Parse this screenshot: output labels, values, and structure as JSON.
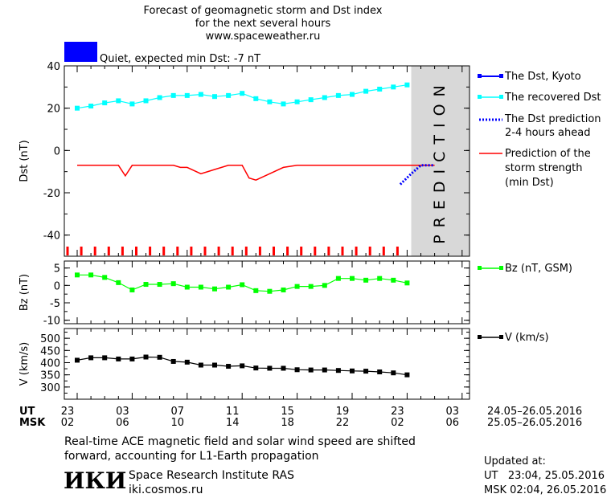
{
  "header": {
    "title_lines": [
      "Forecast of geomagnetic storm and Dst index",
      "for the next several hours",
      "www.spaceweather.ru"
    ],
    "status_color": "#0000ff",
    "status_text": "Quiet, expected min Dst: -7 nT",
    "prediction_label": "PREDICTION"
  },
  "legend": {
    "dst_kyoto": "The Dst, Kyoto",
    "dst_recovered": "The recovered Dst",
    "dst_prediction": [
      "The Dst prediction",
      "2-4 hours ahead"
    ],
    "storm_strength": [
      "Prediction of the",
      "storm strength",
      "(min Dst)"
    ],
    "bz": "Bz (nT, GSM)",
    "v": "V (km/s)"
  },
  "colors": {
    "kyoto": "#0000ff",
    "recovered": "#00ffff",
    "prediction": "#0000ff",
    "storm": "#ff0000",
    "bz": "#00ff00",
    "v": "#000000",
    "prediction_band": "#d8d8d8"
  },
  "chart_data": [
    {
      "type": "line",
      "ylabel": "Dst (nT)",
      "ylim": [
        -50,
        40
      ],
      "yticks": [
        40,
        20,
        0,
        -20,
        -40
      ],
      "x_hours_from_start": [
        0,
        1,
        2,
        3,
        4,
        5,
        6,
        7,
        8,
        9,
        10,
        11,
        12,
        13,
        14,
        15,
        16,
        17,
        18,
        19,
        20,
        21,
        22,
        23,
        24
      ],
      "series": [
        {
          "name": "The recovered Dst",
          "values": [
            20,
            21,
            22.5,
            23.5,
            22,
            23.5,
            25,
            26,
            26,
            26.5,
            25.5,
            26,
            27,
            24.5,
            23,
            22,
            23,
            24,
            25,
            26,
            26.5,
            28,
            29,
            30,
            31
          ]
        },
        {
          "name": "Prediction of the storm strength (min Dst)",
          "x": [
            0,
            1,
            2,
            3,
            3.5,
            4,
            5,
            6,
            7,
            7.5,
            8,
            9,
            10,
            11,
            12,
            12.5,
            13,
            14,
            15,
            16,
            17,
            18,
            19,
            20,
            21,
            22,
            23,
            24,
            25,
            26
          ],
          "values": [
            -7,
            -7,
            -7,
            -7,
            -12,
            -7,
            -7,
            -7,
            -7,
            -8,
            -8,
            -11,
            -9,
            -7,
            -7,
            -13,
            -14,
            -11,
            -8,
            -7,
            -7,
            -7,
            -7,
            -7,
            -7,
            -7,
            -7,
            -7,
            -7,
            -7
          ]
        },
        {
          "name": "The Dst prediction 2-4 hours ahead",
          "x": [
            23.5,
            24.3,
            25,
            26
          ],
          "values": [
            -16,
            -11,
            -7,
            -7
          ]
        }
      ],
      "storm_markers_hours": [
        0,
        1,
        2,
        3,
        4,
        5,
        6,
        7,
        8,
        9,
        10,
        11,
        12,
        13,
        14,
        15,
        16,
        17,
        18,
        19,
        20,
        21,
        22,
        23,
        24
      ]
    },
    {
      "type": "line",
      "ylabel": "Bz (nT)",
      "ylim": [
        -11,
        7
      ],
      "yticks": [
        5,
        0,
        -5,
        -10
      ],
      "x_hours_from_start": [
        0,
        1,
        2,
        3,
        4,
        5,
        6,
        7,
        8,
        9,
        10,
        11,
        12,
        13,
        14,
        15,
        16,
        17,
        18,
        19,
        20,
        21,
        22,
        23,
        24
      ],
      "series": [
        {
          "name": "Bz (nT, GSM)",
          "values": [
            3,
            3,
            2.3,
            0.8,
            -1.3,
            0.3,
            0.3,
            0.5,
            -0.5,
            -0.5,
            -1,
            -0.5,
            0.2,
            -1.5,
            -1.7,
            -1.3,
            -0.3,
            -0.3,
            0,
            2,
            2,
            1.5,
            2,
            1.5,
            0.7
          ]
        }
      ]
    },
    {
      "type": "line",
      "ylabel": "V (km/s)",
      "ylim": [
        250,
        540
      ],
      "yticks": [
        500,
        450,
        400,
        350,
        300
      ],
      "x_hours_from_start": [
        0,
        1,
        2,
        3,
        4,
        5,
        6,
        7,
        8,
        9,
        10,
        11,
        12,
        13,
        14,
        15,
        16,
        17,
        18,
        19,
        20,
        21,
        22,
        23,
        24
      ],
      "series": [
        {
          "name": "V (km/s)",
          "values": [
            410,
            420,
            420,
            415,
            415,
            423,
            422,
            405,
            402,
            390,
            390,
            385,
            387,
            378,
            377,
            377,
            371,
            370,
            370,
            368,
            366,
            365,
            362,
            358,
            350
          ]
        }
      ]
    }
  ],
  "time_axis": {
    "ut_label": "UT",
    "msk_label": "MSK",
    "ut_ticks": [
      "23",
      "03",
      "07",
      "11",
      "15",
      "19",
      "23",
      "03"
    ],
    "msk_ticks": [
      "02",
      "06",
      "10",
      "14",
      "18",
      "22",
      "02",
      "06"
    ],
    "ut_range": "24.05–26.05.2016",
    "msk_range": "25.05–26.05.2016"
  },
  "footer": {
    "note_lines": [
      "Real-time ACE magnetic field and solar wind speed are shifted",
      "forward, accounting for L1-Earth propagation"
    ],
    "logo_text": "ИКИ",
    "institute": "Space Research Institute RAS",
    "site": "iki.cosmos.ru",
    "updated_title": "Updated at:",
    "updated_ut": "UT   23:04, 25.05.2016",
    "updated_msk": "MSK 02:04, 26.05.2016"
  }
}
